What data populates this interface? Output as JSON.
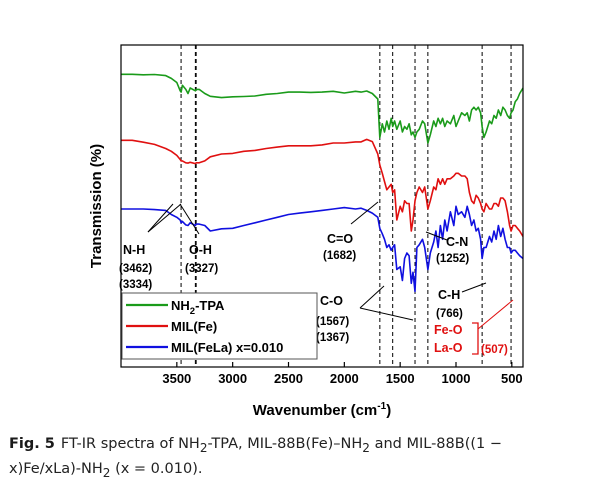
{
  "chart_data": {
    "type": "line",
    "xlabel": "Wavenumber (cm",
    "xlabel_sup": "-1",
    "xlabel_tail": ")",
    "ylabel": "Transmission (%)",
    "xlim": [
      4000,
      400
    ],
    "xticks": [
      3500,
      3000,
      2500,
      2000,
      1500,
      1000,
      500
    ],
    "series": [
      {
        "name": "NH",
        "name_sub": "2",
        "name_tail": "-TPA",
        "color": "#1a9b1a",
        "x": [
          4000,
          3900,
          3800,
          3700,
          3600,
          3550,
          3500,
          3470,
          3462,
          3450,
          3420,
          3400,
          3380,
          3334,
          3327,
          3300,
          3250,
          3200,
          3100,
          3000,
          2900,
          2800,
          2700,
          2600,
          2500,
          2400,
          2300,
          2200,
          2100,
          2000,
          1900,
          1850,
          1800,
          1750,
          1700,
          1682,
          1660,
          1640,
          1620,
          1600,
          1580,
          1567,
          1550,
          1530,
          1500,
          1480,
          1460,
          1440,
          1420,
          1400,
          1385,
          1367,
          1350,
          1330,
          1300,
          1280,
          1252,
          1230,
          1200,
          1180,
          1160,
          1140,
          1120,
          1100,
          1080,
          1050,
          1020,
          1000,
          980,
          950,
          920,
          900,
          880,
          860,
          840,
          820,
          800,
          780,
          766,
          750,
          730,
          700,
          680,
          660,
          640,
          620,
          600,
          580,
          560,
          540,
          520,
          507,
          490,
          470,
          450,
          430,
          400
        ],
        "y": [
          93,
          93,
          92.8,
          92.9,
          92.5,
          91.5,
          90,
          87,
          86.5,
          89,
          87.5,
          86,
          88,
          87,
          87.5,
          87.5,
          86,
          85,
          84.5,
          84.8,
          84.9,
          85.1,
          85.7,
          86,
          86.5,
          86.5,
          86.4,
          86.5,
          86.8,
          86.2,
          86.8,
          86.5,
          86.9,
          86,
          84,
          70,
          75,
          72,
          76,
          73,
          77,
          74,
          76,
          73,
          76,
          72,
          74,
          73,
          75,
          71,
          72,
          70,
          72,
          73,
          76,
          75,
          68,
          71,
          76,
          74,
          77,
          75,
          77,
          74,
          76,
          75,
          78,
          74,
          76,
          79,
          78,
          79,
          76,
          80,
          81,
          80,
          81,
          79,
          74,
          70,
          72,
          76,
          75,
          78,
          77,
          80,
          78,
          81,
          80,
          78,
          77,
          79,
          80,
          83,
          84,
          86,
          88
        ]
      },
      {
        "name": "MIL(Fe)",
        "color": "#e01010",
        "x": [
          4000,
          3900,
          3800,
          3700,
          3600,
          3550,
          3500,
          3470,
          3462,
          3450,
          3420,
          3400,
          3380,
          3334,
          3327,
          3300,
          3250,
          3200,
          3100,
          3000,
          2900,
          2800,
          2700,
          2600,
          2500,
          2400,
          2300,
          2200,
          2100,
          2000,
          1900,
          1850,
          1800,
          1750,
          1700,
          1682,
          1660,
          1640,
          1620,
          1600,
          1580,
          1567,
          1550,
          1530,
          1500,
          1480,
          1460,
          1440,
          1420,
          1400,
          1385,
          1367,
          1350,
          1330,
          1300,
          1280,
          1252,
          1230,
          1200,
          1180,
          1160,
          1140,
          1120,
          1100,
          1080,
          1050,
          1020,
          1000,
          980,
          950,
          920,
          900,
          880,
          860,
          840,
          820,
          800,
          780,
          766,
          750,
          730,
          700,
          680,
          660,
          640,
          620,
          600,
          580,
          560,
          540,
          520,
          507,
          490,
          470,
          450,
          430,
          400
        ],
        "y": [
          69,
          69,
          68.3,
          67.5,
          66,
          65,
          63.5,
          62,
          61.5,
          61.5,
          60.8,
          60.7,
          61,
          60.5,
          60.8,
          60.8,
          61.5,
          63,
          64,
          64.2,
          65,
          65.3,
          66,
          66.5,
          67,
          67,
          67,
          67.3,
          68,
          68,
          68.4,
          68.4,
          69.3,
          68.5,
          64,
          60,
          57,
          54,
          51,
          52,
          53,
          50,
          51,
          40,
          45,
          43,
          47,
          46,
          46,
          36,
          40,
          47,
          50,
          52,
          50,
          52,
          44,
          47,
          52,
          51,
          55,
          53,
          55,
          53,
          55,
          55,
          56,
          57,
          57,
          56,
          56,
          55,
          50,
          47,
          46,
          49,
          48,
          46,
          44,
          43,
          46,
          44,
          44,
          46,
          46,
          45,
          48,
          48,
          47,
          43,
          38,
          36,
          38,
          38,
          37,
          36,
          34
        ]
      },
      {
        "name": "MIL(FeLa) x=0.010",
        "color": "#1010e0",
        "x": [
          4000,
          3900,
          3800,
          3700,
          3600,
          3550,
          3500,
          3470,
          3462,
          3450,
          3420,
          3400,
          3380,
          3334,
          3327,
          3300,
          3250,
          3200,
          3100,
          3000,
          2900,
          2800,
          2700,
          2600,
          2500,
          2400,
          2300,
          2200,
          2100,
          2000,
          1900,
          1850,
          1800,
          1750,
          1700,
          1682,
          1660,
          1640,
          1620,
          1600,
          1580,
          1567,
          1550,
          1530,
          1500,
          1480,
          1460,
          1440,
          1420,
          1400,
          1385,
          1367,
          1350,
          1330,
          1300,
          1280,
          1252,
          1230,
          1200,
          1180,
          1160,
          1140,
          1120,
          1100,
          1080,
          1050,
          1020,
          1000,
          980,
          950,
          920,
          900,
          880,
          860,
          840,
          820,
          800,
          780,
          766,
          750,
          730,
          700,
          680,
          660,
          640,
          620,
          600,
          580,
          560,
          540,
          520,
          507,
          490,
          470,
          450,
          430,
          400
        ],
        "y": [
          44,
          44,
          44,
          43.8,
          43.5,
          42,
          41,
          40,
          39,
          39.5,
          38.2,
          38,
          39,
          38,
          38.5,
          38.5,
          38,
          36,
          36.8,
          37,
          38,
          39,
          40,
          41,
          42,
          42.5,
          43,
          43.5,
          44,
          44.5,
          44,
          44.3,
          43.5,
          42.5,
          41,
          37,
          35,
          33,
          30,
          31,
          29,
          30,
          31,
          22,
          23,
          18,
          26,
          28,
          27,
          17,
          21,
          14,
          30,
          31,
          33,
          30,
          22,
          28,
          32,
          36,
          30,
          38,
          33,
          40,
          36,
          43,
          38,
          45,
          42,
          43,
          41,
          45,
          42,
          38,
          40,
          36,
          37,
          33,
          26,
          30,
          30,
          34,
          32,
          36,
          33,
          38,
          34,
          37,
          33,
          30,
          30,
          28,
          29,
          29,
          28,
          27,
          26
        ]
      }
    ],
    "reference_lines": [
      3462,
      3327,
      3334,
      1682,
      1567,
      1367,
      1252,
      766,
      507
    ],
    "annotations": {
      "nh": "N-H",
      "nh_v1": "(3462)",
      "nh_v2": "(3334)",
      "oh": "O-H",
      "oh_v": "(3327)",
      "co_double": "C=O",
      "co_double_v": "(1682)",
      "co_single": "C-O",
      "co_single_v1": "(1567)",
      "co_single_v2": "(1367)",
      "cn": "C-N",
      "cn_v": "(1252)",
      "ch": "C-H",
      "ch_v": "(766)",
      "feo": "Fe-O",
      "lao": "La-O",
      "metal_v": "(507)"
    },
    "legend_position": "bottom-left",
    "grid": false
  },
  "caption": {
    "fig_label": "Fig. 5",
    "text_line1": "FT-IR spectra of NH",
    "sub1": "2",
    "text_line1b": "-TPA, MIL-88B(Fe)–NH",
    "sub2": "2",
    "text_line1c": " and MIL-88B((1 −",
    "text_line2": "x)Fe/xLa)-NH",
    "sub3": "2",
    "text_line2b": " (x = 0.010)."
  }
}
